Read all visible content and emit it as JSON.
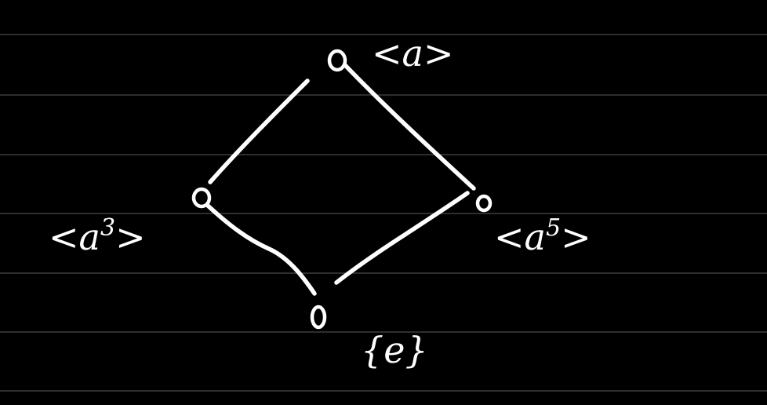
{
  "diagram": {
    "type": "subgroup-lattice",
    "background": "#000000",
    "ink_color": "#ffffff",
    "rule_color": "#4a4a4a",
    "nodes": [
      {
        "id": "top",
        "label_base": "<a",
        "label_sup": "",
        "label_close": ">"
      },
      {
        "id": "left",
        "label_base": "<a",
        "label_sup": "3",
        "label_close": ">"
      },
      {
        "id": "right",
        "label_base": "<a",
        "label_sup": "5",
        "label_close": ">"
      },
      {
        "id": "bottom",
        "label_base": "{e}",
        "label_sup": "",
        "label_close": ""
      }
    ],
    "edges": [
      {
        "from": "top",
        "to": "left"
      },
      {
        "from": "top",
        "to": "right"
      },
      {
        "from": "left",
        "to": "bottom"
      },
      {
        "from": "right",
        "to": "bottom"
      }
    ]
  }
}
